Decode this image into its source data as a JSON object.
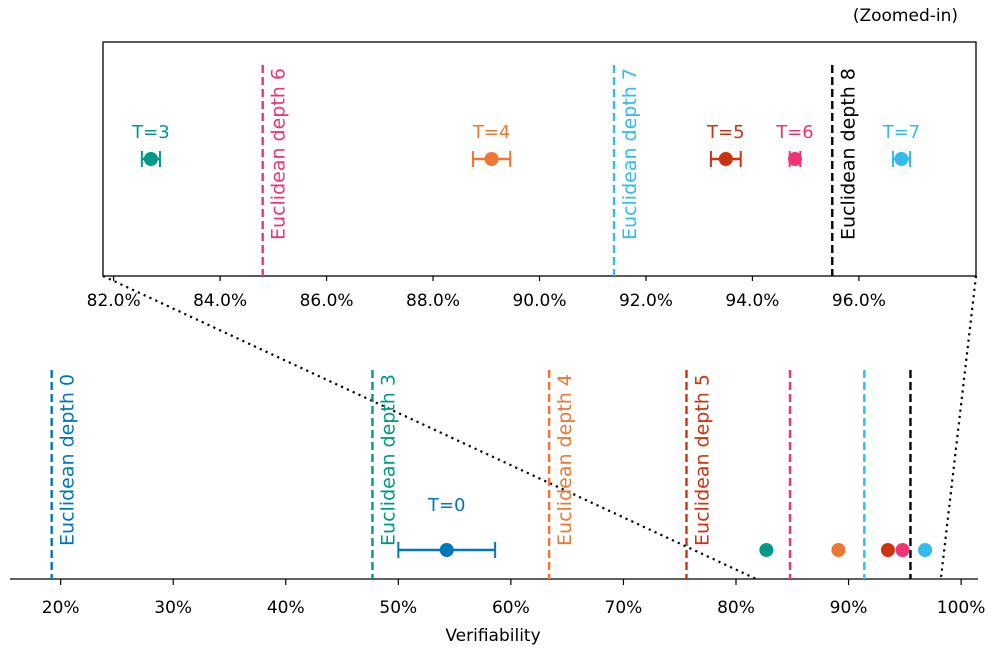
{
  "chart_data": [
    {
      "type": "scatter",
      "panel": "zoomed-in",
      "title": "(Zoomed-in)",
      "xlim": [
        0.818,
        0.982
      ],
      "xticks": [
        0.82,
        0.84,
        0.86,
        0.88,
        0.9,
        0.92,
        0.94,
        0.96
      ],
      "xtick_labels": [
        "82.0%",
        "84.0%",
        "86.0%",
        "88.0%",
        "90.0%",
        "92.0%",
        "94.0%",
        "96.0%"
      ],
      "grid": false,
      "points": [
        {
          "label": "T=3",
          "x": 0.827,
          "err": 0.0017,
          "color": "#009988"
        },
        {
          "label": "T=4",
          "x": 0.891,
          "err": 0.0035,
          "color": "#EE7733"
        },
        {
          "label": "T=5",
          "x": 0.935,
          "err": 0.0028,
          "color": "#CC3311"
        },
        {
          "label": "T=6",
          "x": 0.948,
          "err": 0.001,
          "color": "#EE3377"
        },
        {
          "label": "T=7",
          "x": 0.968,
          "err": 0.0016,
          "color": "#33BBEE"
        }
      ],
      "vlines": [
        {
          "label": "Euclidean depth 6",
          "x": 0.848,
          "color": "#EE3377"
        },
        {
          "label": "Euclidean depth 7",
          "x": 0.914,
          "color": "#33BBEE"
        },
        {
          "label": "Euclidean depth 8",
          "x": 0.955,
          "color": "#000000"
        }
      ]
    },
    {
      "type": "scatter",
      "panel": "full",
      "xlabel": "Verifiability",
      "xlim": [
        0.155,
        1.015
      ],
      "xticks": [
        0.2,
        0.3,
        0.4,
        0.5,
        0.6,
        0.7,
        0.8,
        0.9,
        1.0
      ],
      "xtick_labels": [
        "20%",
        "30%",
        "40%",
        "50%",
        "60%",
        "70%",
        "80%",
        "90%",
        "100%"
      ],
      "grid": false,
      "points": [
        {
          "label": "T=0",
          "x": 0.543,
          "err": 0.043,
          "color": "#0077BB"
        },
        {
          "x": 0.827,
          "color": "#009988"
        },
        {
          "x": 0.891,
          "color": "#EE7733"
        },
        {
          "x": 0.935,
          "color": "#CC3311"
        },
        {
          "x": 0.948,
          "color": "#EE3377"
        },
        {
          "x": 0.968,
          "color": "#33BBEE"
        }
      ],
      "vlines": [
        {
          "label": "Euclidean depth 0",
          "x": 0.192,
          "color": "#0077BB"
        },
        {
          "label": "Euclidean depth 3",
          "x": 0.477,
          "color": "#009988"
        },
        {
          "label": "Euclidean depth 4",
          "x": 0.634,
          "color": "#EE7733"
        },
        {
          "label": "Euclidean depth 5",
          "x": 0.756,
          "color": "#CC3311"
        },
        {
          "x": 0.848,
          "color": "#EE3377"
        },
        {
          "x": 0.914,
          "color": "#33BBEE"
        },
        {
          "x": 0.955,
          "color": "#000000"
        }
      ]
    }
  ]
}
